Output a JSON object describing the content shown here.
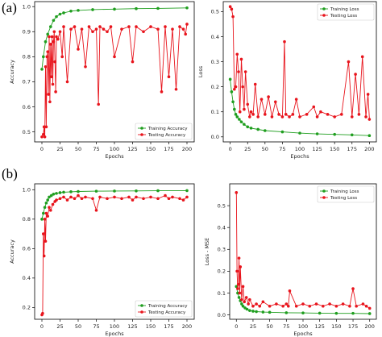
{
  "panels": [
    {
      "label": "(a)"
    },
    {
      "label": "(b)"
    }
  ],
  "chart_data": [
    {
      "type": "line",
      "panel": "(a)",
      "xlabel": "Epochs",
      "ylabel": "Accuracy",
      "xlim": [
        -10,
        210
      ],
      "ylim": [
        0.46,
        1.02
      ],
      "xticks": [
        0,
        25,
        50,
        75,
        100,
        125,
        150,
        175,
        200
      ],
      "yticks": [
        0.5,
        0.6,
        0.7,
        0.8,
        0.9,
        1.0
      ],
      "legend_position": "lower-right",
      "series": [
        {
          "name": "Training Accuracy",
          "color": "#1f9e1f",
          "x": [
            0,
            2,
            5,
            8,
            12,
            16,
            20,
            25,
            30,
            40,
            50,
            70,
            100,
            130,
            160,
            200
          ],
          "values": [
            0.75,
            0.8,
            0.86,
            0.89,
            0.92,
            0.945,
            0.96,
            0.97,
            0.975,
            0.982,
            0.985,
            0.988,
            0.99,
            0.992,
            0.993,
            0.995
          ]
        },
        {
          "name": "Testing Accuracy",
          "color": "#e8141c",
          "x": [
            0,
            2,
            3,
            4,
            5,
            6,
            7,
            8,
            9,
            10,
            11,
            12,
            13,
            14,
            15,
            16,
            17,
            18,
            19,
            20,
            22,
            25,
            28,
            30,
            35,
            40,
            45,
            50,
            55,
            60,
            65,
            70,
            75,
            78,
            80,
            85,
            90,
            95,
            100,
            110,
            120,
            125,
            130,
            140,
            150,
            160,
            165,
            170,
            175,
            180,
            185,
            190,
            195,
            198,
            200
          ],
          "values": [
            0.48,
            0.49,
            0.52,
            0.48,
            0.76,
            0.52,
            0.8,
            0.82,
            0.65,
            0.88,
            0.62,
            0.85,
            0.72,
            0.88,
            0.69,
            0.86,
            0.9,
            0.78,
            0.66,
            0.88,
            0.87,
            0.9,
            0.8,
            0.92,
            0.7,
            0.91,
            0.92,
            0.83,
            0.91,
            0.76,
            0.92,
            0.9,
            0.91,
            0.61,
            0.92,
            0.91,
            0.9,
            0.92,
            0.8,
            0.91,
            0.92,
            0.78,
            0.92,
            0.9,
            0.92,
            0.91,
            0.66,
            0.92,
            0.72,
            0.91,
            0.67,
            0.92,
            0.91,
            0.89,
            0.93
          ]
        }
      ]
    },
    {
      "type": "line",
      "panel": "(a)",
      "xlabel": "Epochs",
      "ylabel": "Loss",
      "xlim": [
        -10,
        210
      ],
      "ylim": [
        -0.02,
        0.54
      ],
      "xticks": [
        0,
        25,
        50,
        75,
        100,
        125,
        150,
        175,
        200
      ],
      "yticks": [
        0.0,
        0.1,
        0.2,
        0.3,
        0.4,
        0.5
      ],
      "legend_position": "top-right",
      "series": [
        {
          "name": "Training Loss",
          "color": "#1f9e1f",
          "x": [
            0,
            2,
            4,
            6,
            8,
            10,
            13,
            16,
            20,
            25,
            30,
            40,
            50,
            75,
            100,
            125,
            150,
            175,
            200
          ],
          "values": [
            0.23,
            0.18,
            0.14,
            0.11,
            0.09,
            0.08,
            0.07,
            0.06,
            0.05,
            0.04,
            0.035,
            0.03,
            0.025,
            0.02,
            0.015,
            0.012,
            0.01,
            0.008,
            0.005
          ]
        },
        {
          "name": "Testing Loss",
          "color": "#e8141c",
          "x": [
            0,
            2,
            4,
            6,
            8,
            10,
            12,
            14,
            16,
            18,
            20,
            22,
            25,
            28,
            30,
            33,
            36,
            40,
            45,
            50,
            55,
            60,
            65,
            70,
            75,
            78,
            80,
            85,
            90,
            95,
            100,
            110,
            120,
            125,
            130,
            140,
            150,
            160,
            170,
            175,
            180,
            185,
            190,
            195,
            198,
            200
          ],
          "values": [
            0.52,
            0.51,
            0.48,
            0.19,
            0.2,
            0.33,
            0.26,
            0.1,
            0.31,
            0.2,
            0.11,
            0.26,
            0.13,
            0.08,
            0.1,
            0.09,
            0.21,
            0.08,
            0.15,
            0.09,
            0.16,
            0.08,
            0.14,
            0.09,
            0.08,
            0.38,
            0.09,
            0.08,
            0.09,
            0.15,
            0.08,
            0.09,
            0.12,
            0.08,
            0.1,
            0.09,
            0.08,
            0.09,
            0.3,
            0.08,
            0.25,
            0.09,
            0.32,
            0.08,
            0.17,
            0.07
          ]
        }
      ]
    },
    {
      "type": "line",
      "panel": "(b)",
      "xlabel": "Epochs",
      "ylabel": "Accuracy",
      "xlim": [
        -10,
        210
      ],
      "ylim": [
        0.12,
        1.04
      ],
      "xticks": [
        0,
        25,
        50,
        75,
        100,
        125,
        150,
        175,
        200
      ],
      "yticks": [
        0.2,
        0.4,
        0.6,
        0.8,
        1.0
      ],
      "legend_position": "lower-right",
      "series": [
        {
          "name": "Training Accuracy",
          "color": "#1f9e1f",
          "x": [
            0,
            2,
            4,
            6,
            8,
            10,
            13,
            16,
            20,
            25,
            30,
            40,
            50,
            75,
            100,
            130,
            160,
            200
          ],
          "values": [
            0.8,
            0.84,
            0.88,
            0.91,
            0.93,
            0.95,
            0.96,
            0.97,
            0.975,
            0.98,
            0.983,
            0.986,
            0.988,
            0.99,
            0.991,
            0.992,
            0.993,
            0.994
          ]
        },
        {
          "name": "Testing Accuracy",
          "color": "#e8141c",
          "x": [
            0,
            1,
            2,
            3,
            4,
            5,
            6,
            8,
            10,
            12,
            15,
            18,
            20,
            25,
            30,
            35,
            40,
            45,
            50,
            55,
            60,
            70,
            75,
            80,
            90,
            100,
            110,
            120,
            125,
            130,
            140,
            150,
            160,
            170,
            175,
            180,
            190,
            195,
            200
          ],
          "values": [
            0.15,
            0.16,
            0.7,
            0.55,
            0.8,
            0.65,
            0.84,
            0.82,
            0.88,
            0.86,
            0.9,
            0.92,
            0.93,
            0.94,
            0.95,
            0.93,
            0.95,
            0.94,
            0.96,
            0.94,
            0.95,
            0.94,
            0.86,
            0.95,
            0.94,
            0.95,
            0.94,
            0.95,
            0.93,
            0.95,
            0.94,
            0.95,
            0.94,
            0.96,
            0.94,
            0.95,
            0.94,
            0.93,
            0.95
          ]
        }
      ]
    },
    {
      "type": "line",
      "panel": "(b)",
      "xlabel": "Epochs",
      "ylabel": "Loss - MSE",
      "xlim": [
        -10,
        210
      ],
      "ylim": [
        -0.02,
        0.6
      ],
      "xticks": [
        0,
        25,
        50,
        75,
        100,
        125,
        150,
        175,
        200
      ],
      "yticks": [
        0.0,
        0.1,
        0.2,
        0.3,
        0.4,
        0.5
      ],
      "legend_position": "top-right",
      "series": [
        {
          "name": "Training Loss",
          "color": "#1f9e1f",
          "x": [
            0,
            2,
            4,
            6,
            8,
            10,
            13,
            16,
            20,
            25,
            30,
            40,
            50,
            75,
            100,
            125,
            150,
            175,
            200
          ],
          "values": [
            0.13,
            0.1,
            0.08,
            0.065,
            0.05,
            0.04,
            0.032,
            0.026,
            0.02,
            0.017,
            0.015,
            0.013,
            0.012,
            0.01,
            0.009,
            0.008,
            0.007,
            0.007,
            0.006
          ]
        },
        {
          "name": "Testing Loss",
          "color": "#e8141c",
          "x": [
            0,
            1,
            2,
            3,
            4,
            5,
            6,
            8,
            10,
            12,
            15,
            18,
            20,
            25,
            30,
            35,
            40,
            50,
            60,
            70,
            75,
            78,
            80,
            90,
            100,
            110,
            120,
            130,
            140,
            150,
            160,
            170,
            175,
            180,
            190,
            195,
            200
          ],
          "values": [
            0.56,
            0.2,
            0.12,
            0.14,
            0.26,
            0.1,
            0.22,
            0.07,
            0.13,
            0.06,
            0.08,
            0.05,
            0.07,
            0.04,
            0.05,
            0.04,
            0.06,
            0.04,
            0.05,
            0.04,
            0.05,
            0.04,
            0.11,
            0.04,
            0.05,
            0.04,
            0.05,
            0.04,
            0.05,
            0.04,
            0.05,
            0.04,
            0.12,
            0.04,
            0.05,
            0.04,
            0.03
          ]
        }
      ]
    }
  ]
}
